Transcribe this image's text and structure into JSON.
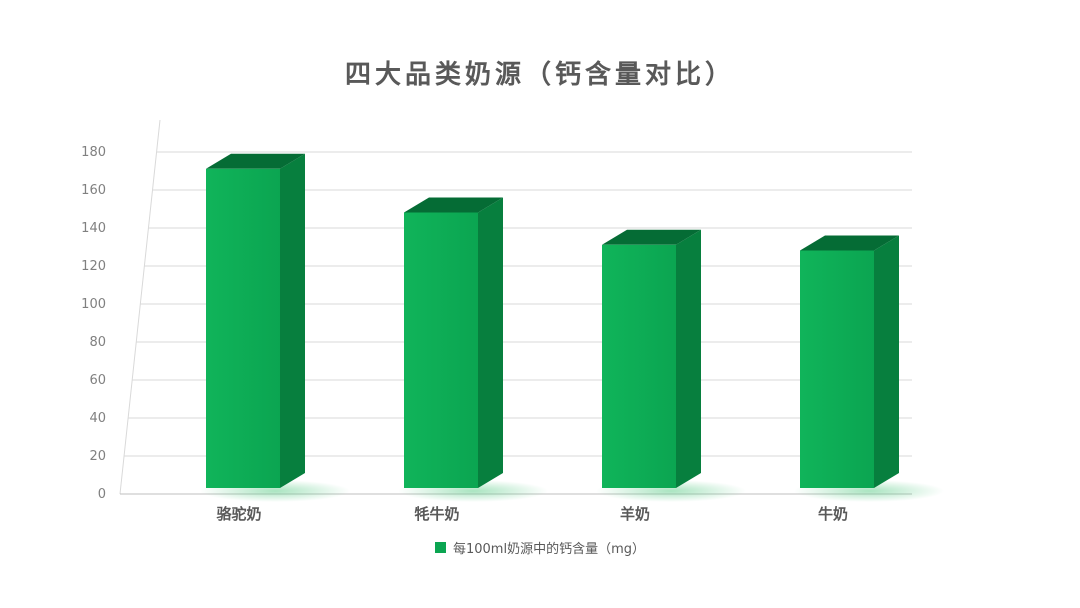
{
  "chart_data": {
    "type": "bar",
    "style": "3d-column",
    "title": "四大品类奶源（钙含量对比）",
    "categories": [
      "骆驼奶",
      "牦牛奶",
      "羊奶",
      "牛奶"
    ],
    "series": [
      {
        "name": "每100ml奶源中的钙含量（mg）",
        "values": [
          168,
          145,
          128,
          125
        ]
      }
    ],
    "xlabel": "",
    "ylabel": "",
    "ylim": [
      0,
      180
    ],
    "ytick_step": 20,
    "yticks": [
      0,
      20,
      40,
      60,
      80,
      100,
      120,
      140,
      160,
      180
    ],
    "grid": true,
    "legend_position": "bottom",
    "colors": {
      "bar_front": "#0BA551",
      "bar_side": "#077F3E",
      "bar_top": "#056C35",
      "glow": "#63CE8D",
      "grid": "#D9D9D9",
      "axis": "#BFBFBF",
      "tick_label": "#808080",
      "category_label": "#595959",
      "title": "#595959",
      "legend_text": "#595959"
    }
  }
}
